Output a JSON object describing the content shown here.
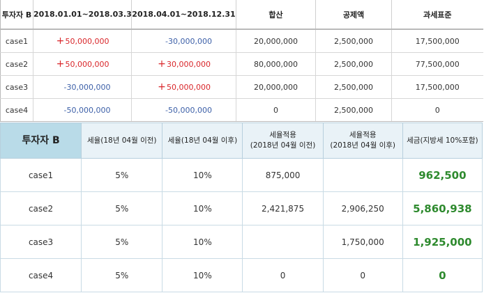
{
  "table1": {
    "headers": [
      "투자자 B",
      "2018.01.01~2018.03.31",
      "2018.04.01~2018.12.31",
      "합산",
      "공제액",
      "과세표준"
    ],
    "rows": [
      {
        "case": "case1",
        "p1": {
          "sign": "+",
          "value": "50,000,000",
          "color": "#d9262a"
        },
        "p2": {
          "sign": "",
          "value": "-30,000,000",
          "color": "#3d60a8"
        },
        "sum": "20,000,000",
        "deduction": "2,500,000",
        "base": "17,500,000"
      },
      {
        "case": "case2",
        "p1": {
          "sign": "+",
          "value": "50,000,000",
          "color": "#d9262a"
        },
        "p2": {
          "sign": "+",
          "value": "30,000,000",
          "color": "#d9262a"
        },
        "sum": "80,000,000",
        "deduction": "2,500,000",
        "base": "77,500,000"
      },
      {
        "case": "case3",
        "p1": {
          "sign": "",
          "value": "-30,000,000",
          "color": "#3d60a8"
        },
        "p2": {
          "sign": "+",
          "value": "50,000,000",
          "color": "#d9262a"
        },
        "sum": "20,000,000",
        "deduction": "2,500,000",
        "base": "17,500,000"
      },
      {
        "case": "case4",
        "p1": {
          "sign": "",
          "value": "-50,000,000",
          "color": "#3d60a8"
        },
        "p2": {
          "sign": "",
          "value": "-50,000,000",
          "color": "#3d60a8"
        },
        "sum": "0",
        "deduction": "2,500,000",
        "base": "0"
      }
    ]
  },
  "table2": {
    "headers": {
      "lead": "투자자 B",
      "rate_before": "세율(18년 04월 이전)",
      "rate_after": "세율(18년 04월 이후)",
      "applied_before_1": "세율적용",
      "applied_before_2": "(2018년 04월 이전)",
      "applied_after_1": "세율적용",
      "applied_after_2": "(2018년 04월 이후)",
      "tax": "세금(지방세 10%포함)"
    },
    "rows": [
      {
        "case": "case1",
        "rate_before": "5%",
        "rate_after": "10%",
        "applied_before": "875,000",
        "applied_after": "",
        "tax": "962,500"
      },
      {
        "case": "case2",
        "rate_before": "5%",
        "rate_after": "10%",
        "applied_before": "2,421,875",
        "applied_after": "2,906,250",
        "tax": "5,860,938"
      },
      {
        "case": "case3",
        "rate_before": "5%",
        "rate_after": "10%",
        "applied_before": "",
        "applied_after": "1,750,000",
        "tax": "1,925,000"
      },
      {
        "case": "case4",
        "rate_before": "5%",
        "rate_after": "10%",
        "applied_before": "0",
        "applied_after": "0",
        "tax": "0"
      }
    ],
    "colors": {
      "header_lead": "#b9dbe8",
      "header": "#e9f2f7",
      "tax_text": "#2e8a2e"
    }
  }
}
